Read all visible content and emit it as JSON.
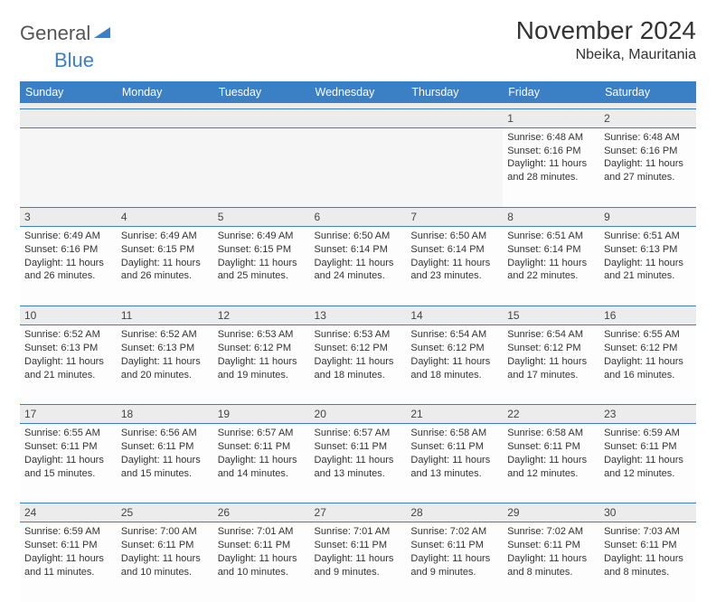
{
  "logo": {
    "text1": "General",
    "text2": "Blue"
  },
  "title": "November 2024",
  "location": "Nbeika, Mauritania",
  "colors": {
    "accent": "#3b7fc4",
    "headerText": "#ffffff",
    "dayBg": "#ececec"
  },
  "weekdays": [
    "Sunday",
    "Monday",
    "Tuesday",
    "Wednesday",
    "Thursday",
    "Friday",
    "Saturday"
  ],
  "weeks": [
    {
      "nums": [
        "",
        "",
        "",
        "",
        "",
        "1",
        "2"
      ],
      "cells": [
        null,
        null,
        null,
        null,
        null,
        {
          "sr": "Sunrise: 6:48 AM",
          "ss": "Sunset: 6:16 PM",
          "d1": "Daylight: 11 hours",
          "d2": "and 28 minutes."
        },
        {
          "sr": "Sunrise: 6:48 AM",
          "ss": "Sunset: 6:16 PM",
          "d1": "Daylight: 11 hours",
          "d2": "and 27 minutes."
        }
      ]
    },
    {
      "nums": [
        "3",
        "4",
        "5",
        "6",
        "7",
        "8",
        "9"
      ],
      "cells": [
        {
          "sr": "Sunrise: 6:49 AM",
          "ss": "Sunset: 6:16 PM",
          "d1": "Daylight: 11 hours",
          "d2": "and 26 minutes."
        },
        {
          "sr": "Sunrise: 6:49 AM",
          "ss": "Sunset: 6:15 PM",
          "d1": "Daylight: 11 hours",
          "d2": "and 26 minutes."
        },
        {
          "sr": "Sunrise: 6:49 AM",
          "ss": "Sunset: 6:15 PM",
          "d1": "Daylight: 11 hours",
          "d2": "and 25 minutes."
        },
        {
          "sr": "Sunrise: 6:50 AM",
          "ss": "Sunset: 6:14 PM",
          "d1": "Daylight: 11 hours",
          "d2": "and 24 minutes."
        },
        {
          "sr": "Sunrise: 6:50 AM",
          "ss": "Sunset: 6:14 PM",
          "d1": "Daylight: 11 hours",
          "d2": "and 23 minutes."
        },
        {
          "sr": "Sunrise: 6:51 AM",
          "ss": "Sunset: 6:14 PM",
          "d1": "Daylight: 11 hours",
          "d2": "and 22 minutes."
        },
        {
          "sr": "Sunrise: 6:51 AM",
          "ss": "Sunset: 6:13 PM",
          "d1": "Daylight: 11 hours",
          "d2": "and 21 minutes."
        }
      ]
    },
    {
      "nums": [
        "10",
        "11",
        "12",
        "13",
        "14",
        "15",
        "16"
      ],
      "cells": [
        {
          "sr": "Sunrise: 6:52 AM",
          "ss": "Sunset: 6:13 PM",
          "d1": "Daylight: 11 hours",
          "d2": "and 21 minutes."
        },
        {
          "sr": "Sunrise: 6:52 AM",
          "ss": "Sunset: 6:13 PM",
          "d1": "Daylight: 11 hours",
          "d2": "and 20 minutes."
        },
        {
          "sr": "Sunrise: 6:53 AM",
          "ss": "Sunset: 6:12 PM",
          "d1": "Daylight: 11 hours",
          "d2": "and 19 minutes."
        },
        {
          "sr": "Sunrise: 6:53 AM",
          "ss": "Sunset: 6:12 PM",
          "d1": "Daylight: 11 hours",
          "d2": "and 18 minutes."
        },
        {
          "sr": "Sunrise: 6:54 AM",
          "ss": "Sunset: 6:12 PM",
          "d1": "Daylight: 11 hours",
          "d2": "and 18 minutes."
        },
        {
          "sr": "Sunrise: 6:54 AM",
          "ss": "Sunset: 6:12 PM",
          "d1": "Daylight: 11 hours",
          "d2": "and 17 minutes."
        },
        {
          "sr": "Sunrise: 6:55 AM",
          "ss": "Sunset: 6:12 PM",
          "d1": "Daylight: 11 hours",
          "d2": "and 16 minutes."
        }
      ]
    },
    {
      "nums": [
        "17",
        "18",
        "19",
        "20",
        "21",
        "22",
        "23"
      ],
      "cells": [
        {
          "sr": "Sunrise: 6:55 AM",
          "ss": "Sunset: 6:11 PM",
          "d1": "Daylight: 11 hours",
          "d2": "and 15 minutes."
        },
        {
          "sr": "Sunrise: 6:56 AM",
          "ss": "Sunset: 6:11 PM",
          "d1": "Daylight: 11 hours",
          "d2": "and 15 minutes."
        },
        {
          "sr": "Sunrise: 6:57 AM",
          "ss": "Sunset: 6:11 PM",
          "d1": "Daylight: 11 hours",
          "d2": "and 14 minutes."
        },
        {
          "sr": "Sunrise: 6:57 AM",
          "ss": "Sunset: 6:11 PM",
          "d1": "Daylight: 11 hours",
          "d2": "and 13 minutes."
        },
        {
          "sr": "Sunrise: 6:58 AM",
          "ss": "Sunset: 6:11 PM",
          "d1": "Daylight: 11 hours",
          "d2": "and 13 minutes."
        },
        {
          "sr": "Sunrise: 6:58 AM",
          "ss": "Sunset: 6:11 PM",
          "d1": "Daylight: 11 hours",
          "d2": "and 12 minutes."
        },
        {
          "sr": "Sunrise: 6:59 AM",
          "ss": "Sunset: 6:11 PM",
          "d1": "Daylight: 11 hours",
          "d2": "and 12 minutes."
        }
      ]
    },
    {
      "nums": [
        "24",
        "25",
        "26",
        "27",
        "28",
        "29",
        "30"
      ],
      "cells": [
        {
          "sr": "Sunrise: 6:59 AM",
          "ss": "Sunset: 6:11 PM",
          "d1": "Daylight: 11 hours",
          "d2": "and 11 minutes."
        },
        {
          "sr": "Sunrise: 7:00 AM",
          "ss": "Sunset: 6:11 PM",
          "d1": "Daylight: 11 hours",
          "d2": "and 10 minutes."
        },
        {
          "sr": "Sunrise: 7:01 AM",
          "ss": "Sunset: 6:11 PM",
          "d1": "Daylight: 11 hours",
          "d2": "and 10 minutes."
        },
        {
          "sr": "Sunrise: 7:01 AM",
          "ss": "Sunset: 6:11 PM",
          "d1": "Daylight: 11 hours",
          "d2": "and 9 minutes."
        },
        {
          "sr": "Sunrise: 7:02 AM",
          "ss": "Sunset: 6:11 PM",
          "d1": "Daylight: 11 hours",
          "d2": "and 9 minutes."
        },
        {
          "sr": "Sunrise: 7:02 AM",
          "ss": "Sunset: 6:11 PM",
          "d1": "Daylight: 11 hours",
          "d2": "and 8 minutes."
        },
        {
          "sr": "Sunrise: 7:03 AM",
          "ss": "Sunset: 6:11 PM",
          "d1": "Daylight: 11 hours",
          "d2": "and 8 minutes."
        }
      ]
    }
  ]
}
